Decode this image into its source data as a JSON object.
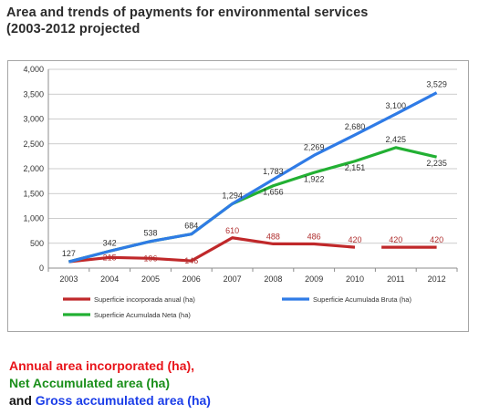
{
  "title": {
    "line1": "Area and trends of payments for environmental services",
    "line2": "(2003-2012 projected"
  },
  "chart_data": {
    "type": "line",
    "categories": [
      "2003",
      "2004",
      "2005",
      "2006",
      "2007",
      "2008",
      "2009",
      "2010",
      "2011",
      "2012"
    ],
    "ylim": [
      0,
      4000
    ],
    "yticks": [
      "0",
      "500",
      "1,000",
      "1,500",
      "2,000",
      "2,500",
      "3,000",
      "3,500",
      "4,000"
    ],
    "ytick_values": [
      0,
      500,
      1000,
      1500,
      2000,
      2500,
      3000,
      3500,
      4000
    ],
    "grid": true,
    "legend_placement": "bottom",
    "series": [
      {
        "name": "Superficie Acumulada Bruta (ha)",
        "color": "#2f7be6",
        "values": [
          127,
          342,
          538,
          684,
          1294,
          1783,
          2269,
          2680,
          3100,
          3529
        ],
        "labels": [
          "",
          "",
          "",
          "",
          "",
          "1,783",
          "2,269",
          "2,680",
          "3,100",
          "3,529"
        ]
      },
      {
        "name": "Superficie Acumulada Neta (ha)",
        "color": "#22b033",
        "values": [
          127,
          342,
          538,
          684,
          1294,
          1656,
          1922,
          2151,
          2425,
          2235
        ],
        "labels": [
          "127",
          "342",
          "538",
          "684",
          "1,294",
          "1,656",
          "1,922",
          "2,151",
          "2,425",
          "2,235"
        ]
      },
      {
        "name": "Superficie incorporada anual (ha)",
        "color": "#c0282a",
        "values": [
          127,
          215,
          196,
          146,
          610,
          488,
          486,
          420,
          420,
          420
        ],
        "labels": [
          "",
          "215",
          "196",
          "146",
          "610",
          "488",
          "486",
          "420",
          "420",
          "420"
        ]
      }
    ]
  },
  "caption": {
    "line1": "Annual area incorporated  (ha),",
    "line2": "Net Accumulated area (ha)",
    "line3_prefix": "and ",
    "line3_highlight": "Gross accumulated area (ha)"
  }
}
